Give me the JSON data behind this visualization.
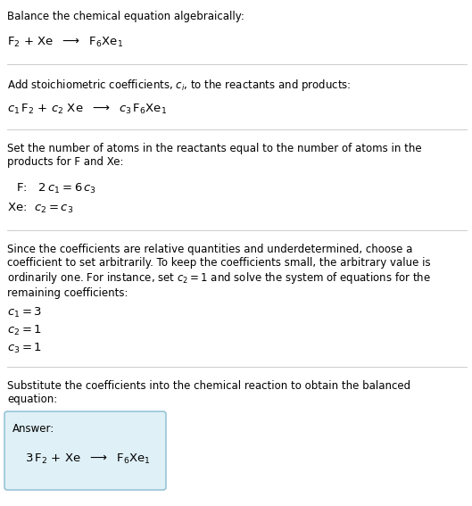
{
  "title_section": "Balance the chemical equation algebraically:",
  "section2_title": "Add stoichiometric coefficients, $c_i$, to the reactants and products:",
  "section3_title": "Set the number of atoms in the reactants equal to the number of atoms in the\nproducts for F and Xe:",
  "section4_title": "Since the coefficients are relative quantities and underdetermined, choose a\ncoefficient to set arbitrarily. To keep the coefficients small, the arbitrary value is\nordinarily one. For instance, set $c_2 = 1$ and solve the system of equations for the\nremaining coefficients:",
  "section5_title": "Substitute the coefficients into the chemical reaction to obtain the balanced\nequation:",
  "answer_label": "Answer:",
  "bg_color": "#ffffff",
  "text_color": "#000000",
  "box_edge_color": "#88bbd0",
  "box_face_color": "#dff0f7",
  "line_color": "#cccccc",
  "fs_prose": 8.5,
  "fs_chem": 9.5,
  "lw_line": 0.7
}
